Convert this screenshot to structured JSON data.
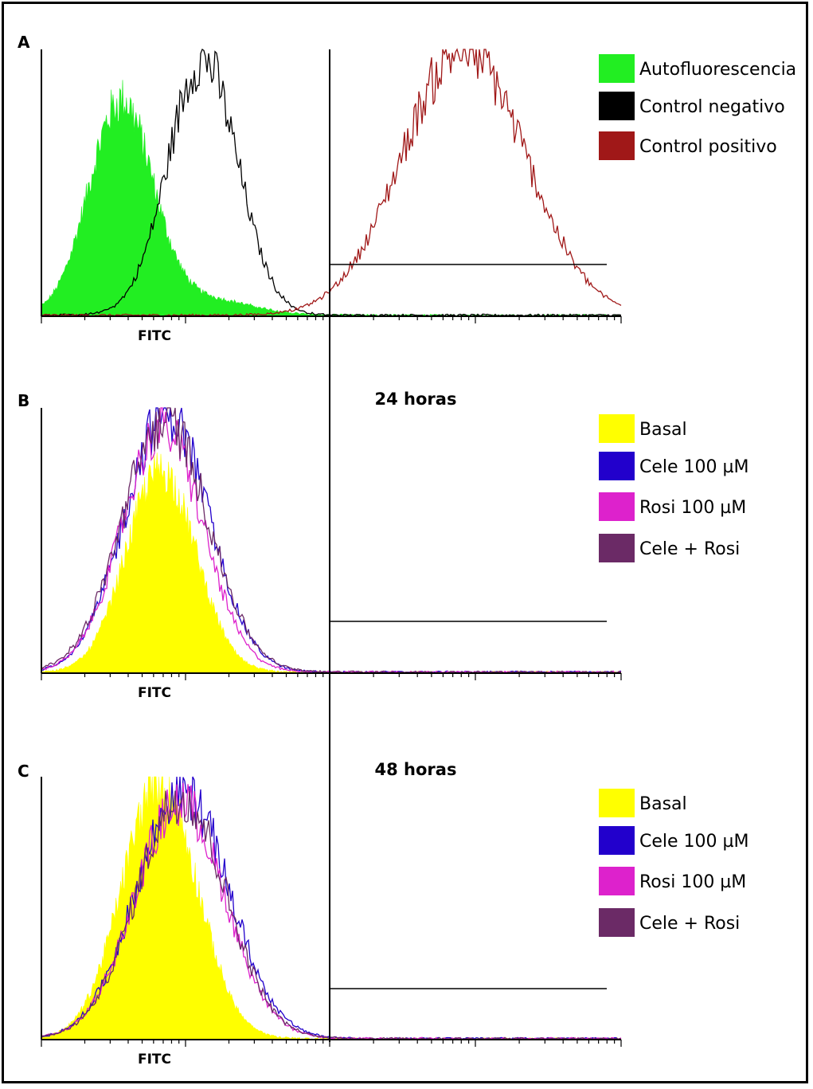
{
  "colors": {
    "autofluorescence": "#22ee22",
    "control_negative": "#000000",
    "control_positive": "#a01818",
    "basal": "#ffff00",
    "cele": "#2200cc",
    "rosi": "#dd22cc",
    "cele_rosi": "#6b2a66"
  },
  "chart_data": [
    {
      "panel": "A",
      "type": "area",
      "title": "",
      "xlabel": "FITC",
      "ylabel": "",
      "x_scale": "log",
      "x_range_decades": [
        0,
        4
      ],
      "marker": {
        "x_decade": 2.0,
        "level_fraction": 0.2
      },
      "series": [
        {
          "name": "Autofluorescencia",
          "color_key": "autofluorescence",
          "fill": true,
          "peak_decade": 0.55,
          "width_decades": 0.22,
          "peak_fraction": 0.8,
          "tail_fraction": 0.06
        },
        {
          "name": "Control negativo",
          "color_key": "control_negative",
          "fill": false,
          "peak_decade": 1.12,
          "width_decades": 0.24,
          "peak_fraction": 0.96
        },
        {
          "name": "Control positivo",
          "color_key": "control_positive",
          "fill": false,
          "peak_decade": 2.92,
          "width_decades": 0.42,
          "peak_fraction": 1.0
        }
      ]
    },
    {
      "panel": "B",
      "type": "area",
      "title": "24 horas",
      "xlabel": "FITC",
      "ylabel": "",
      "x_scale": "log",
      "x_range_decades": [
        0,
        4
      ],
      "marker": {
        "x_decade": 2.0,
        "level_fraction": 0.2
      },
      "series": [
        {
          "name": "Basal",
          "color_key": "basal",
          "fill": true,
          "peak_decade": 0.83,
          "width_decades": 0.24,
          "peak_fraction": 0.76
        },
        {
          "name": "Cele 100 µM",
          "color_key": "cele",
          "fill": false,
          "peak_decade": 0.87,
          "width_decades": 0.29,
          "peak_fraction": 0.98
        },
        {
          "name": "Rosi 100 µM",
          "color_key": "rosi",
          "fill": false,
          "peak_decade": 0.84,
          "width_decades": 0.28,
          "peak_fraction": 0.92
        },
        {
          "name": "Cele + Rosi",
          "color_key": "cele_rosi",
          "fill": false,
          "peak_decade": 0.86,
          "width_decades": 0.3,
          "peak_fraction": 0.95
        }
      ]
    },
    {
      "panel": "C",
      "type": "area",
      "title": "48 horas",
      "xlabel": "FITC",
      "ylabel": "",
      "x_scale": "log",
      "x_range_decades": [
        0,
        4
      ],
      "marker": {
        "x_decade": 2.0,
        "level_fraction": 0.2
      },
      "series": [
        {
          "name": "Basal",
          "color_key": "basal",
          "fill": true,
          "peak_decade": 0.82,
          "width_decades": 0.26,
          "peak_fraction": 0.97
        },
        {
          "name": "Cele 100 µM",
          "color_key": "cele",
          "fill": false,
          "peak_decade": 0.98,
          "width_decades": 0.32,
          "peak_fraction": 0.94
        },
        {
          "name": "Rosi 100 µM",
          "color_key": "rosi",
          "fill": false,
          "peak_decade": 0.96,
          "width_decades": 0.31,
          "peak_fraction": 0.9
        },
        {
          "name": "Cele + Rosi",
          "color_key": "cele_rosi",
          "fill": false,
          "peak_decade": 0.97,
          "width_decades": 0.31,
          "peak_fraction": 0.92
        }
      ]
    }
  ]
}
